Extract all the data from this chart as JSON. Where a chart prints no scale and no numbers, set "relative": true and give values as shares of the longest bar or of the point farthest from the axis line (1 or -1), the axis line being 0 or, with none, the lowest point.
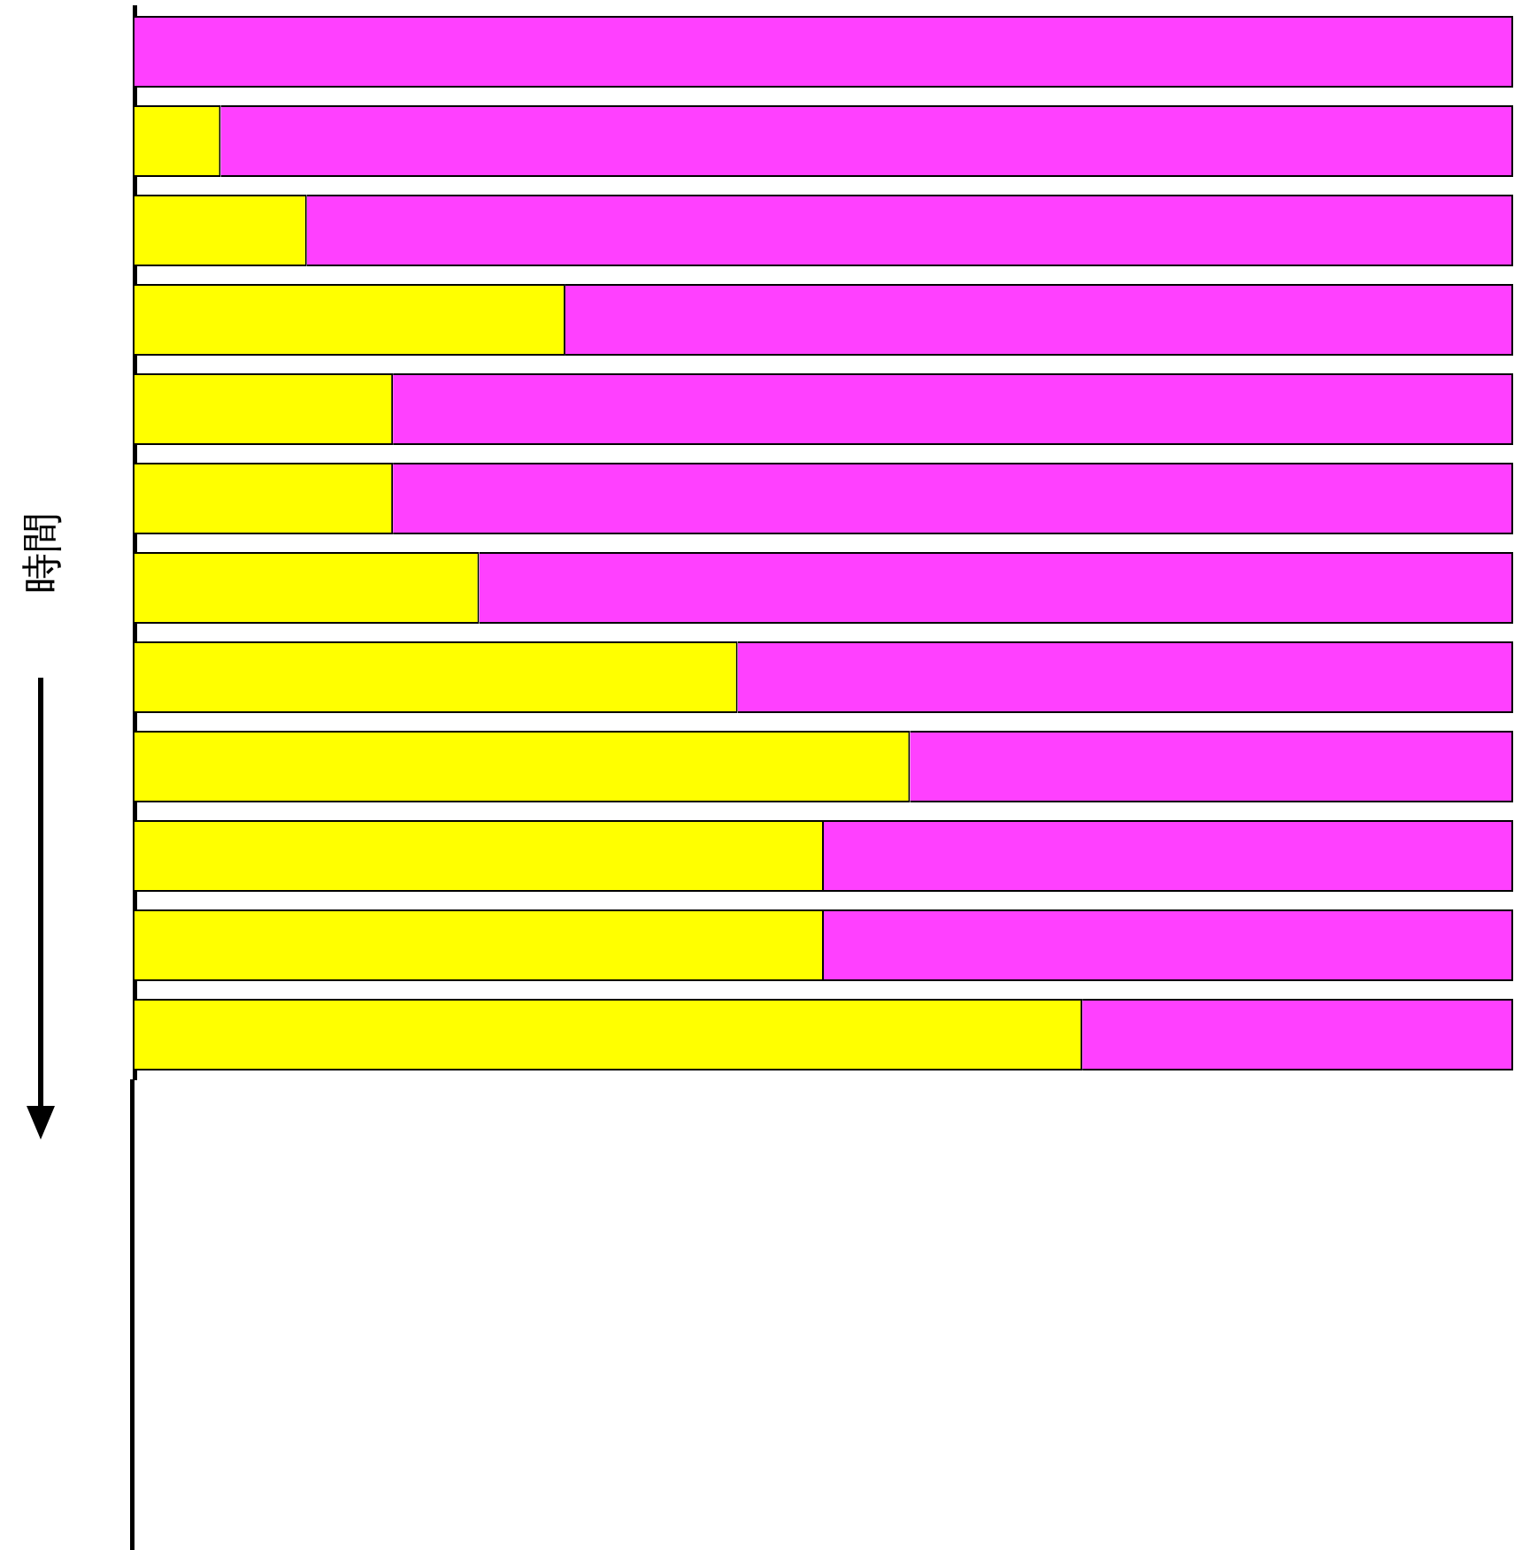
{
  "chart_data": {
    "type": "bar",
    "orientation": "horizontal",
    "stacked": true,
    "relative": true,
    "ylabel": "時間",
    "categories": [
      null,
      null,
      null,
      null,
      null,
      null,
      null,
      null,
      null,
      null,
      null,
      null
    ],
    "series": [
      {
        "color": "#ffff00",
        "values": [
          0,
          0.0625,
          0.125,
          0.3125,
          0.1875,
          0.1875,
          0.25,
          0.4375,
          0.5625,
          0.5,
          0.5,
          0.6875
        ]
      },
      {
        "color": "#ff40ff",
        "values": [
          1,
          0.9375,
          0.875,
          0.6875,
          0.8125,
          0.8125,
          0.75,
          0.5625,
          0.4375,
          0.5,
          0.5,
          0.3125
        ]
      }
    ]
  }
}
